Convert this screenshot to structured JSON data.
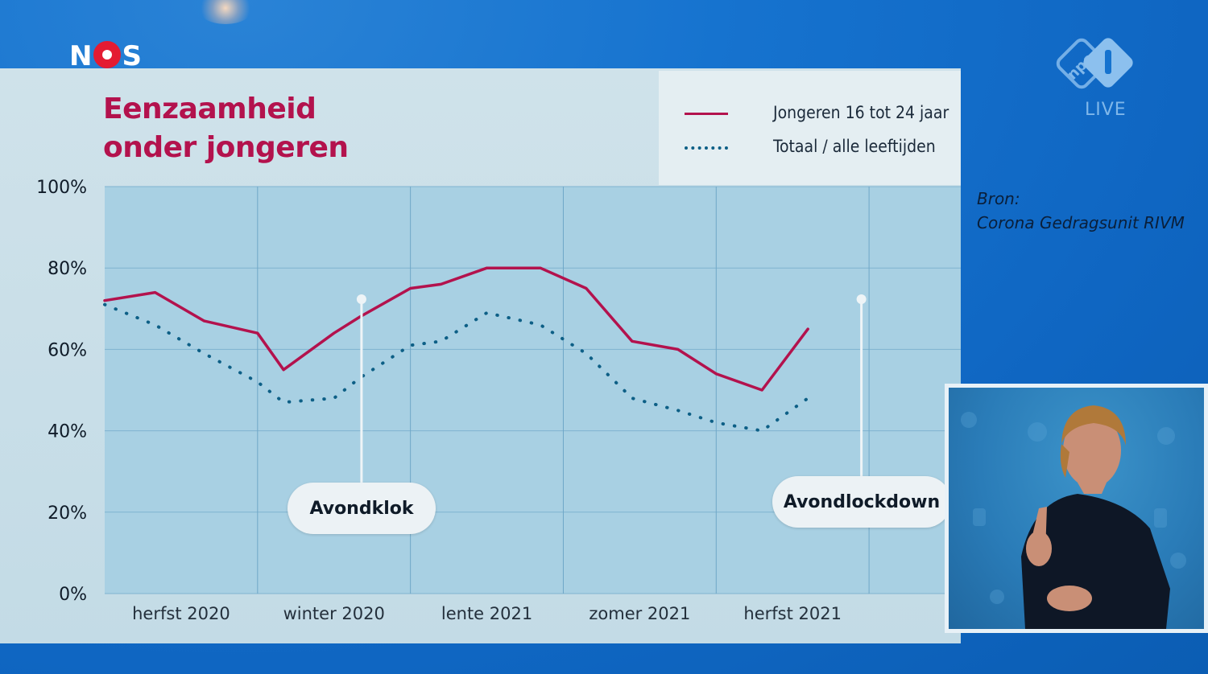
{
  "broadcaster": {
    "logo_text": "NOS",
    "channel": "npo1",
    "live_label": "LIVE"
  },
  "colors": {
    "jongeren": "#b3124d",
    "totaal": "#0d5f86",
    "panel_bg": "#c6dde8",
    "title": "#b3124d"
  },
  "source": {
    "text": "Bron:\nCorona Gedragsunit RIVM"
  },
  "icons": [
    "npo-1-logo-icon",
    "nos-logo-icon"
  ],
  "chart_data": {
    "type": "line",
    "title": "Eenzaamheid\nonder jongeren",
    "x": [
      0,
      0.33,
      0.65,
      1,
      1.17,
      1.5,
      1.67,
      2,
      2.2,
      2.5,
      2.85,
      3.15,
      3.45,
      3.75,
      4,
      4.3,
      4.6,
      4.85,
      5.05
    ],
    "x_tick_labels": [
      "herfst 2020",
      "winter 2020",
      "lente 2021",
      "zomer 2021",
      "herfst 2021"
    ],
    "x_tick_positions": [
      0.5,
      1.5,
      2.5,
      3.5,
      4.5
    ],
    "ylim": [
      0,
      100
    ],
    "y_ticks": [
      0,
      20,
      40,
      60,
      80,
      100
    ],
    "y_tick_labels": [
      "0%",
      "20%",
      "40%",
      "60%",
      "80%",
      "100%"
    ],
    "grid": true,
    "legend_position": "top-right",
    "series": [
      {
        "name": "Jongeren 16 tot 24 jaar",
        "style": "solid",
        "color": "#b3124d",
        "values": [
          72,
          74,
          67,
          64,
          55,
          64,
          68,
          75,
          76,
          80,
          80,
          75,
          62,
          60,
          54,
          50,
          65,
          null,
          null
        ]
      },
      {
        "name": "Totaal / alle leeftijden",
        "style": "dotted",
        "color": "#0d5f86",
        "values": [
          71,
          66,
          59,
          52,
          47,
          48,
          53,
          61,
          62,
          69,
          66,
          59,
          48,
          45,
          42,
          40,
          48,
          null,
          null
        ]
      }
    ],
    "annotations": [
      {
        "label": "Avondklok",
        "x": 1.68
      },
      {
        "label": "Avondlockdown",
        "x": 4.95
      }
    ]
  }
}
